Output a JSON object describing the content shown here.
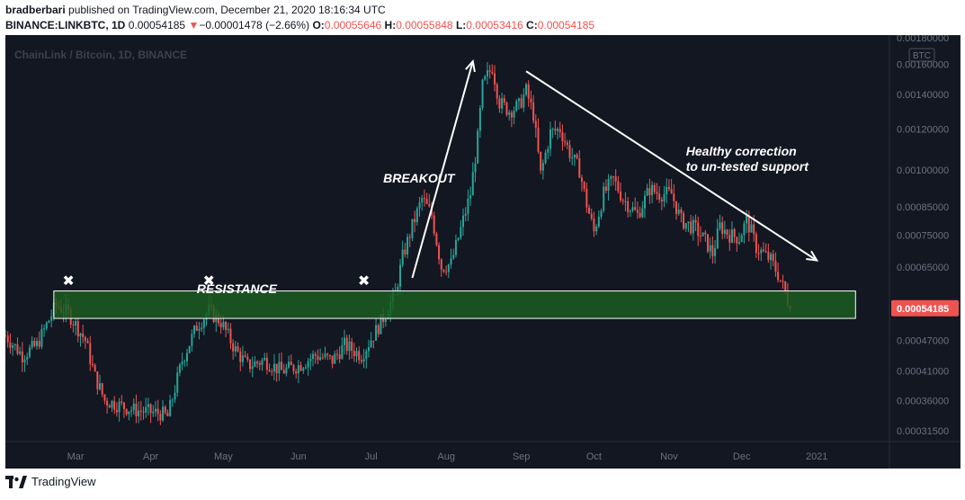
{
  "header": {
    "author": "bradberbari",
    "published_text": "published on TradingView.com, December 21, 2020 18:16:34 UTC",
    "symbol": "BINANCE:LINKBTC, 1D",
    "last_price": "0.00054185",
    "change_arrow": "▼",
    "change": "−0.00001478 (−2.66%)",
    "o_label": "O:",
    "o_value": "0.00055646",
    "h_label": "H:",
    "h_value": "0.00055848",
    "l_label": "L:",
    "l_value": "0.00053416",
    "c_label": "C:",
    "c_value": "0.00054185"
  },
  "footer": {
    "brand": "TradingView",
    "logo_icon": "tradingview-logo-icon"
  },
  "colors": {
    "background": "#131722",
    "up": "#26a69a",
    "down": "#ef5350",
    "zone_fill": "#1b5e20",
    "zone_border": "#ffffff",
    "price_badge": "#ef5350"
  },
  "chart_data": {
    "type": "candlestick",
    "title": "ChainLink / Bitcoin, 1D, BINANCE",
    "currency_badge": "BTC",
    "y_scale": "log",
    "ylim": [
      0.0003,
      0.00182
    ],
    "y_ticks": [
      "0.00180000",
      "0.00160000",
      "0.00140000",
      "0.00120000",
      "0.00100000",
      "0.00085000",
      "0.00075000",
      "0.00065000",
      "0.00054185",
      "0.00047000",
      "0.00041000",
      "0.00036000",
      "0.00031500"
    ],
    "y_tick_values": [
      0.0018,
      0.0016,
      0.0014,
      0.0012,
      0.001,
      0.00085,
      0.00075,
      0.00065,
      0.00054185,
      0.00047,
      0.00041,
      0.00036,
      0.000315
    ],
    "current_price": "0.00054185",
    "x_ticks": [
      "Mar",
      "Apr",
      "May",
      "Jun",
      "Jul",
      "Aug",
      "Sep",
      "Oct",
      "Nov",
      "Dec",
      "2021"
    ],
    "x_tick_dates": [
      "2020-03-01",
      "2020-04-01",
      "2020-05-01",
      "2020-06-01",
      "2020-07-01",
      "2020-08-01",
      "2020-09-01",
      "2020-10-01",
      "2020-11-01",
      "2020-12-01",
      "2021-01-01"
    ],
    "date_range": [
      "2020-02-01",
      "2021-01-31"
    ],
    "anchors": [
      {
        "date": "2020-02-01",
        "close": 0.00048
      },
      {
        "date": "2020-02-08",
        "close": 0.00044
      },
      {
        "date": "2020-02-14",
        "close": 0.00046
      },
      {
        "date": "2020-02-22",
        "close": 0.00055
      },
      {
        "date": "2020-02-27",
        "close": 0.00053
      },
      {
        "date": "2020-03-05",
        "close": 0.00047
      },
      {
        "date": "2020-03-09",
        "close": 0.0004
      },
      {
        "date": "2020-03-13",
        "close": 0.00036
      },
      {
        "date": "2020-03-25",
        "close": 0.000345
      },
      {
        "date": "2020-04-05",
        "close": 0.00034
      },
      {
        "date": "2020-04-08",
        "close": 0.000335
      },
      {
        "date": "2020-04-14",
        "close": 0.00043
      },
      {
        "date": "2020-04-20",
        "close": 0.0005
      },
      {
        "date": "2020-04-25",
        "close": 0.000535
      },
      {
        "date": "2020-04-30",
        "close": 0.00051
      },
      {
        "date": "2020-05-06",
        "close": 0.00045
      },
      {
        "date": "2020-05-11",
        "close": 0.00042
      },
      {
        "date": "2020-05-18",
        "close": 0.00043
      },
      {
        "date": "2020-05-25",
        "close": 0.00041
      },
      {
        "date": "2020-06-01",
        "close": 0.00042
      },
      {
        "date": "2020-06-08",
        "close": 0.00044
      },
      {
        "date": "2020-06-15",
        "close": 0.00043
      },
      {
        "date": "2020-06-20",
        "close": 0.00046
      },
      {
        "date": "2020-06-27",
        "close": 0.00044
      },
      {
        "date": "2020-07-03",
        "close": 0.00049
      },
      {
        "date": "2020-07-07",
        "close": 0.00053
      },
      {
        "date": "2020-07-11",
        "close": 0.00058
      },
      {
        "date": "2020-07-14",
        "close": 0.00068
      },
      {
        "date": "2020-07-18",
        "close": 0.00078
      },
      {
        "date": "2020-07-22",
        "close": 0.00088
      },
      {
        "date": "2020-07-26",
        "close": 0.00082
      },
      {
        "date": "2020-07-30",
        "close": 0.00065
      },
      {
        "date": "2020-08-03",
        "close": 0.00066
      },
      {
        "date": "2020-08-07",
        "close": 0.00077
      },
      {
        "date": "2020-08-11",
        "close": 0.0009
      },
      {
        "date": "2020-08-14",
        "close": 0.00115
      },
      {
        "date": "2020-08-16",
        "close": 0.00145
      },
      {
        "date": "2020-08-18",
        "close": 0.00152
      },
      {
        "date": "2020-08-20",
        "close": 0.00158
      },
      {
        "date": "2020-08-23",
        "close": 0.00135
      },
      {
        "date": "2020-08-27",
        "close": 0.0013
      },
      {
        "date": "2020-08-31",
        "close": 0.00133
      },
      {
        "date": "2020-09-03",
        "close": 0.00142
      },
      {
        "date": "2020-09-06",
        "close": 0.00128
      },
      {
        "date": "2020-09-09",
        "close": 0.00098
      },
      {
        "date": "2020-09-13",
        "close": 0.00118
      },
      {
        "date": "2020-09-17",
        "close": 0.0012
      },
      {
        "date": "2020-09-21",
        "close": 0.00108
      },
      {
        "date": "2020-09-25",
        "close": 0.001
      },
      {
        "date": "2020-09-28",
        "close": 0.00086
      },
      {
        "date": "2020-10-01",
        "close": 0.00076
      },
      {
        "date": "2020-10-05",
        "close": 0.0009
      },
      {
        "date": "2020-10-09",
        "close": 0.00096
      },
      {
        "date": "2020-10-13",
        "close": 0.00088
      },
      {
        "date": "2020-10-19",
        "close": 0.00082
      },
      {
        "date": "2020-10-24",
        "close": 0.00092
      },
      {
        "date": "2020-10-28",
        "close": 0.0009
      },
      {
        "date": "2020-11-02",
        "close": 0.0009
      },
      {
        "date": "2020-11-06",
        "close": 0.0008
      },
      {
        "date": "2020-11-12",
        "close": 0.00077
      },
      {
        "date": "2020-11-16",
        "close": 0.00073
      },
      {
        "date": "2020-11-19",
        "close": 0.00069
      },
      {
        "date": "2020-11-22",
        "close": 0.00078
      },
      {
        "date": "2020-11-26",
        "close": 0.00075
      },
      {
        "date": "2020-11-30",
        "close": 0.00074
      },
      {
        "date": "2020-12-03",
        "close": 0.0008
      },
      {
        "date": "2020-12-05",
        "close": 0.00076
      },
      {
        "date": "2020-12-07",
        "close": 0.00071
      },
      {
        "date": "2020-12-10",
        "close": 0.00069
      },
      {
        "date": "2020-12-13",
        "close": 0.00067
      },
      {
        "date": "2020-12-16",
        "close": 0.00063
      },
      {
        "date": "2020-12-19",
        "close": 0.00058
      },
      {
        "date": "2020-12-21",
        "close": 0.00054185
      }
    ],
    "resistance_zone": {
      "low": 0.000518,
      "high": 0.000585,
      "label": "RESISTANCE"
    },
    "annotations": {
      "resistance": "RESISTANCE",
      "breakout": "BREAKOUT",
      "correction_line1": "Healthy correction",
      "correction_line2": "to un-tested support",
      "touch_marker": "✖"
    },
    "touch_dates": [
      "2020-02-27",
      "2020-04-25",
      "2020-06-28"
    ],
    "breakout_arrow": [
      {
        "date": "2020-07-18",
        "price": 0.00062
      },
      {
        "date": "2020-08-12",
        "price": 0.00162
      }
    ],
    "correction_arrow": [
      {
        "date": "2020-09-03",
        "price": 0.00155
      },
      {
        "date": "2021-01-01",
        "price": 0.00067
      }
    ]
  }
}
